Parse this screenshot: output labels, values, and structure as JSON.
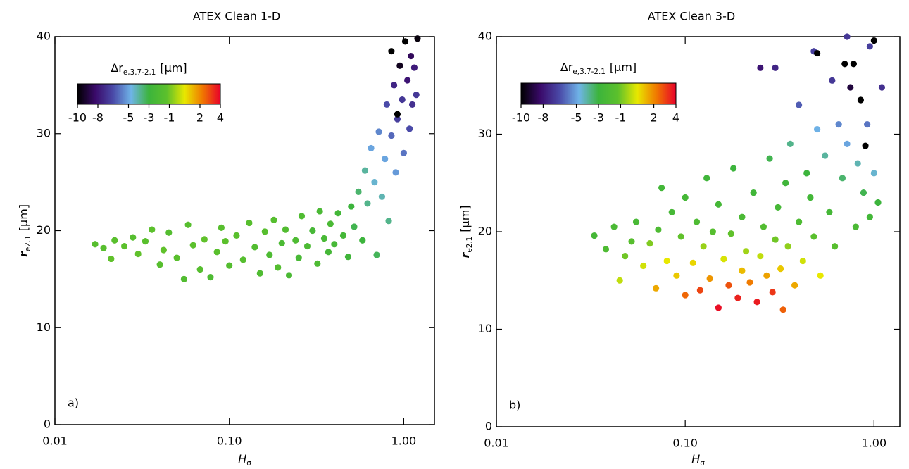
{
  "chart_data": [
    {
      "type": "scatter",
      "title": "ATEX Clean 1-D",
      "panel_label": "a)",
      "xlabel": {
        "text": "H",
        "subscript": "σ"
      },
      "ylabel": {
        "text": "r",
        "subscript": "e2.1",
        "unit": "[μm]"
      },
      "xscale": "log",
      "xlim": [
        0.01,
        1.5
      ],
      "xticks": [
        0.01,
        {
          "value": 0.1,
          "label": "0.10"
        },
        {
          "value": 1,
          "label": "1.00"
        }
      ],
      "ylim": [
        0,
        40
      ],
      "yticks": [
        0,
        10,
        20,
        30,
        40
      ],
      "colorbar": {
        "label": {
          "text": "Δr",
          "subscript": "e,3.7-2.1",
          "unit": "[μm]"
        },
        "clim": [
          -10,
          4
        ],
        "ticks": [
          -10,
          -8,
          -5,
          -3,
          -1,
          2,
          4
        ],
        "colormap": [
          "#000000",
          "#3a0a6a",
          "#4a4aa8",
          "#6fb4e8",
          "#3cb43c",
          "#5cc02c",
          "#e8e800",
          "#f07800",
          "#e8002a"
        ]
      },
      "x": [
        0.017,
        0.019,
        0.021,
        0.022,
        0.025,
        0.028,
        0.03,
        0.033,
        0.036,
        0.04,
        0.042,
        0.045,
        0.05,
        0.055,
        0.058,
        0.062,
        0.068,
        0.072,
        0.078,
        0.085,
        0.09,
        0.095,
        0.1,
        0.11,
        0.12,
        0.13,
        0.14,
        0.15,
        0.16,
        0.17,
        0.18,
        0.19,
        0.2,
        0.21,
        0.22,
        0.24,
        0.25,
        0.26,
        0.28,
        0.3,
        0.32,
        0.33,
        0.35,
        0.37,
        0.38,
        0.4,
        0.42,
        0.45,
        0.48,
        0.5,
        0.52,
        0.55,
        0.58,
        0.6,
        0.62,
        0.65,
        0.68,
        0.7,
        0.72,
        0.75,
        0.78,
        0.8,
        0.82,
        0.85,
        0.88,
        0.9,
        0.92,
        0.95,
        0.98,
        1.0,
        1.02,
        1.05,
        1.08,
        1.1,
        1.12,
        1.15,
        1.18,
        0.92,
        0.85,
        1.2
      ],
      "values": [
        18.6,
        18.2,
        17.1,
        19.0,
        18.4,
        19.3,
        17.6,
        18.9,
        20.1,
        16.5,
        18.0,
        19.8,
        17.2,
        15.0,
        20.6,
        18.5,
        16.0,
        19.1,
        15.2,
        17.8,
        20.3,
        18.9,
        16.4,
        19.5,
        17.0,
        20.8,
        18.3,
        15.6,
        19.9,
        17.5,
        21.1,
        16.2,
        18.7,
        20.1,
        15.4,
        19.0,
        17.2,
        21.5,
        18.4,
        20.0,
        16.6,
        22.0,
        19.2,
        17.8,
        20.7,
        18.6,
        21.8,
        19.5,
        17.3,
        22.5,
        20.4,
        24.0,
        19.0,
        26.2,
        22.8,
        28.5,
        25.0,
        17.5,
        30.2,
        23.5,
        27.4,
        33.0,
        21.0,
        29.8,
        35.0,
        26.0,
        31.5,
        37.0,
        33.5,
        28.0,
        39.5,
        35.5,
        30.5,
        38.0,
        33.0,
        36.8,
        34.0,
        32.0,
        38.5,
        39.8
      ],
      "color_values": [
        -1.5,
        -1.5,
        -1.2,
        -1.4,
        -1.3,
        -1.6,
        -1.2,
        -1.4,
        -1.3,
        -1.5,
        -1.2,
        -1.7,
        -1.4,
        -1.8,
        -1.5,
        -1.3,
        -1.6,
        -1.2,
        -2.0,
        -1.4,
        -1.5,
        -1.3,
        -1.7,
        -1.4,
        -1.6,
        -1.5,
        -1.8,
        -1.9,
        -1.5,
        -2.0,
        -1.6,
        -1.7,
        -2.1,
        -1.8,
        -2.2,
        -2.0,
        -2.3,
        -1.9,
        -2.1,
        -2.4,
        -2.0,
        -2.2,
        -2.3,
        -2.5,
        -2.2,
        -2.4,
        -2.6,
        -2.5,
        -2.8,
        -3.0,
        -3.2,
        -3.5,
        -3.0,
        -4.0,
        -3.8,
        -5.0,
        -4.5,
        -3.3,
        -5.5,
        -4.2,
        -5.0,
        -6.5,
        -3.8,
        -6.0,
        -7.5,
        -5.2,
        -6.8,
        -9.5,
        -7.0,
        -5.8,
        -10,
        -8.0,
        -6.5,
        -8.5,
        -7.2,
        -7.8,
        -7.0,
        -10,
        -10,
        -9.8
      ]
    },
    {
      "type": "scatter",
      "title": "ATEX Clean 3-D",
      "panel_label": "b)",
      "xlabel": {
        "text": "H",
        "subscript": "σ"
      },
      "ylabel": {
        "text": "r",
        "subscript": "e2.1",
        "unit": "[μm]"
      },
      "xscale": "log",
      "xlim": [
        0.01,
        1.37
      ],
      "xticks": [
        0.01,
        {
          "value": 0.1,
          "label": "0.10"
        },
        {
          "value": 1,
          "label": "1.00"
        }
      ],
      "ylim": [
        0,
        40
      ],
      "yticks": [
        0,
        10,
        20,
        30,
        40
      ],
      "colorbar": {
        "label": {
          "text": "Δr",
          "subscript": "e,3.7-2.1",
          "unit": "[μm]"
        },
        "clim": [
          -10,
          4
        ],
        "ticks": [
          -10,
          -8,
          -5,
          -3,
          -1,
          2,
          4
        ],
        "colormap": [
          "#000000",
          "#3a0a6a",
          "#4a4aa8",
          "#6fb4e8",
          "#3cb43c",
          "#5cc02c",
          "#e8e800",
          "#f07800",
          "#e8002a"
        ]
      },
      "x": [
        0.033,
        0.038,
        0.042,
        0.045,
        0.048,
        0.052,
        0.055,
        0.06,
        0.065,
        0.07,
        0.072,
        0.075,
        0.08,
        0.085,
        0.09,
        0.095,
        0.1,
        0.1,
        0.11,
        0.115,
        0.12,
        0.125,
        0.13,
        0.135,
        0.14,
        0.15,
        0.15,
        0.16,
        0.17,
        0.175,
        0.18,
        0.19,
        0.2,
        0.2,
        0.21,
        0.22,
        0.23,
        0.24,
        0.25,
        0.25,
        0.26,
        0.27,
        0.28,
        0.29,
        0.3,
        0.3,
        0.31,
        0.32,
        0.33,
        0.34,
        0.35,
        0.36,
        0.38,
        0.4,
        0.4,
        0.42,
        0.44,
        0.46,
        0.48,
        0.48,
        0.5,
        0.5,
        0.52,
        0.55,
        0.58,
        0.6,
        0.62,
        0.65,
        0.68,
        0.7,
        0.72,
        0.75,
        0.78,
        0.8,
        0.82,
        0.85,
        0.88,
        0.9,
        0.92,
        0.95,
        1.0,
        1.0,
        1.05,
        1.1,
        0.95,
        0.72
      ],
      "values": [
        19.6,
        18.2,
        20.5,
        15.0,
        17.5,
        19.0,
        21.0,
        16.5,
        18.8,
        14.2,
        20.2,
        24.5,
        17.0,
        22.0,
        15.5,
        19.5,
        13.5,
        23.5,
        16.8,
        21.0,
        14.0,
        18.5,
        25.5,
        15.2,
        20.0,
        12.2,
        22.8,
        17.2,
        14.5,
        19.8,
        26.5,
        13.2,
        16.0,
        21.5,
        18.0,
        14.8,
        24.0,
        12.8,
        17.5,
        36.8,
        20.5,
        15.5,
        27.5,
        13.8,
        19.2,
        36.8,
        22.5,
        16.2,
        12.0,
        25.0,
        18.5,
        29.0,
        14.5,
        21.0,
        33.0,
        17.0,
        26.0,
        23.5,
        19.5,
        38.5,
        30.5,
        38.3,
        15.5,
        27.8,
        22.0,
        35.5,
        18.5,
        31.0,
        25.5,
        37.2,
        29.0,
        34.8,
        37.2,
        20.5,
        27.0,
        33.5,
        24.0,
        28.8,
        31.0,
        21.5,
        39.6,
        26.0,
        23.0,
        34.8,
        39.0,
        40.0
      ],
      "color_values": [
        -2.5,
        -2.0,
        -2.2,
        0.0,
        -1.0,
        -1.5,
        -2.3,
        0.2,
        -0.8,
        1.5,
        -2.0,
        -2.6,
        0.5,
        -2.4,
        1.0,
        -1.2,
        2.5,
        -2.5,
        0.8,
        -2.0,
        3.0,
        -0.5,
        -2.8,
        1.8,
        -1.6,
        3.8,
        -2.5,
        0.3,
        2.8,
        -1.2,
        -3.0,
        3.5,
        1.2,
        -2.2,
        -0.4,
        2.2,
        -2.7,
        3.6,
        0.0,
        -8.0,
        -1.8,
        1.6,
        -3.2,
        3.2,
        -1.0,
        -7.5,
        -2.4,
        1.0,
        2.6,
        -2.8,
        -0.6,
        -3.8,
        1.5,
        -2.0,
        -6.2,
        0.2,
        -3.0,
        -2.6,
        -1.4,
        -6.8,
        -4.8,
        -10,
        0.5,
        -4.0,
        -2.5,
        -7.0,
        -1.5,
        -5.5,
        -3.5,
        -10,
        -5.0,
        -9.0,
        -10,
        -2.2,
        -4.2,
        -10,
        -3.2,
        -10,
        -5.8,
        -2.6,
        -10,
        -4.5,
        -3.0,
        -7.2,
        -6.8,
        -7.0
      ]
    }
  ]
}
